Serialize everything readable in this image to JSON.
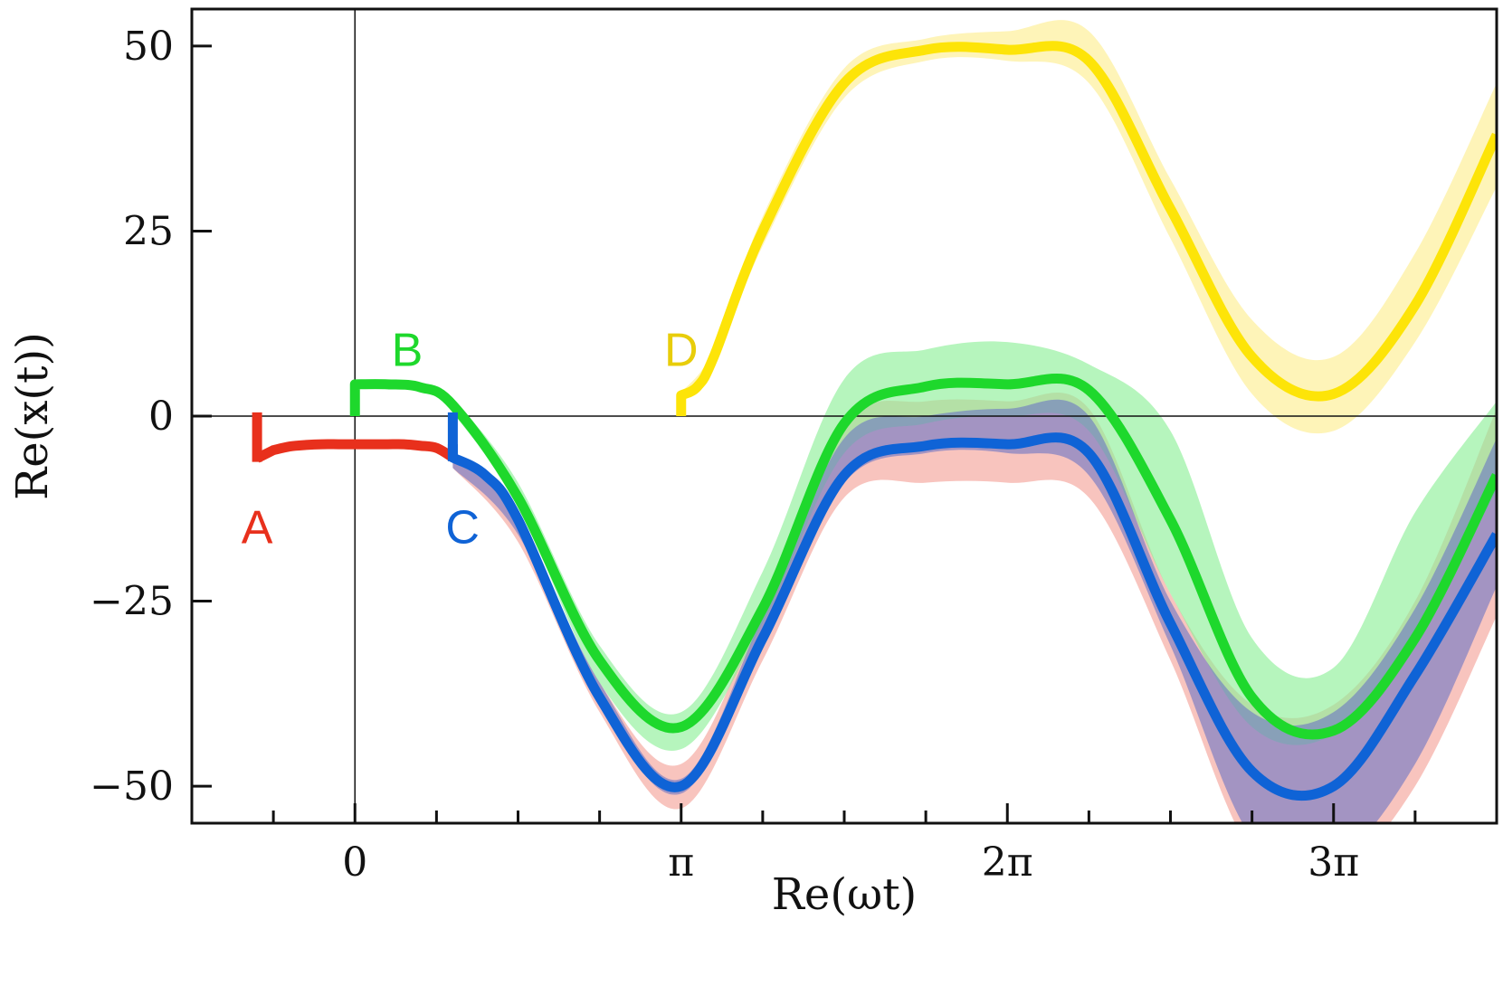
{
  "chart_data": {
    "type": "line",
    "title": "",
    "xlabel": "Re(ωt)",
    "ylabel": "Re(x(t))",
    "xlim": [
      -0.5,
      3.5
    ],
    "ylim": [
      -55,
      55
    ],
    "x_unit": "pi",
    "xticks": [
      {
        "value": 0,
        "label": "0"
      },
      {
        "value": 1,
        "label": "π"
      },
      {
        "value": 2,
        "label": "2π"
      },
      {
        "value": 3,
        "label": "3π"
      }
    ],
    "yticks": [
      {
        "value": 50,
        "label": "50"
      },
      {
        "value": 25,
        "label": "25"
      },
      {
        "value": 0,
        "label": "0"
      },
      {
        "value": -25,
        "label": "−25"
      },
      {
        "value": -50,
        "label": "−50"
      }
    ],
    "reference_lines": {
      "x": 0,
      "y": 0
    },
    "series": [
      {
        "name": "A",
        "color": "#e8301c",
        "band_color": "#f4a59b",
        "x": [
          -0.3,
          -0.25,
          -0.2,
          -0.15,
          -0.1,
          -0.05,
          0.0,
          0.05,
          0.1,
          0.15,
          0.2,
          0.25,
          0.3
        ],
        "y": [
          -5.7,
          -4.6,
          -4.1,
          -3.9,
          -3.8,
          -3.8,
          -3.8,
          -3.8,
          -3.8,
          -3.8,
          -4.0,
          -4.3,
          -5.6
        ],
        "band_x": [
          0.3,
          0.5,
          0.75,
          1.0,
          1.25,
          1.5,
          1.75,
          2.0,
          2.25,
          2.5,
          2.75,
          3.0,
          3.25,
          3.5
        ],
        "band_lo": [
          -7,
          -17,
          -40,
          -53,
          -33,
          -11,
          -9,
          -9,
          -11,
          -33,
          -59,
          -62,
          -50,
          -27
        ],
        "band_hi": [
          -5,
          -14,
          -36,
          -47,
          -26,
          -1,
          2,
          2,
          1,
          -24,
          -39,
          -39,
          -25,
          1
        ],
        "label_position": {
          "x": -0.3,
          "y": -15
        }
      },
      {
        "name": "B",
        "color": "#1ed82c",
        "band_color": "#8ff09a",
        "x": [
          0.0,
          0.0,
          0.1,
          0.2,
          0.3,
          0.5,
          0.75,
          1.0,
          1.25,
          1.5,
          1.75,
          2.0,
          2.25,
          2.5,
          2.75,
          3.0,
          3.25,
          3.5
        ],
        "y": [
          0,
          4.3,
          4.3,
          3.9,
          1.5,
          -11,
          -33,
          -42,
          -26,
          -1,
          4,
          4.3,
          3.5,
          -14,
          -38,
          -42.5,
          -30,
          -8
        ],
        "band_x": [
          0.3,
          0.5,
          0.75,
          1.0,
          1.25,
          1.5,
          1.75,
          2.0,
          2.25,
          2.5,
          2.75,
          3.0,
          3.25,
          3.5
        ],
        "band_lo": [
          0.5,
          -12,
          -36,
          -45,
          -28,
          -5,
          -1,
          0,
          -2,
          -24,
          -42,
          -43,
          -30,
          -10
        ],
        "band_hi": [
          2.5,
          -9,
          -31,
          -40,
          -21,
          5,
          9,
          10,
          7,
          -2,
          -30,
          -34,
          -13,
          2
        ],
        "label_position": {
          "x": 0.16,
          "y": 9
        }
      },
      {
        "name": "C",
        "color": "#0f63d6",
        "band_color": "#6a74c4",
        "x": [
          0.3,
          0.3,
          0.4,
          0.5,
          0.75,
          1.0,
          1.25,
          1.5,
          1.75,
          2.0,
          2.25,
          2.5,
          2.75,
          3.0,
          3.25,
          3.5
        ],
        "y": [
          -3.8,
          -5.6,
          -8,
          -14,
          -38,
          -50,
          -30,
          -8,
          -4,
          -3.8,
          -5,
          -28,
          -48,
          -50,
          -35,
          -16
        ],
        "band_x": [
          0.3,
          0.5,
          0.75,
          1.0,
          1.25,
          1.5,
          1.75,
          2.0,
          2.25,
          2.5,
          2.75,
          3.0,
          3.25,
          3.5
        ],
        "band_lo": [
          -7,
          -16,
          -39,
          -51,
          -31,
          -9,
          -5,
          -5,
          -8,
          -31,
          -57,
          -60,
          -47,
          -23
        ],
        "band_hi": [
          -5,
          -14,
          -36,
          -49,
          -27,
          -3,
          0,
          1,
          0,
          -25,
          -40,
          -40,
          -26,
          -3
        ],
        "label_position": {
          "x": 0.33,
          "y": -15
        }
      },
      {
        "name": "D",
        "color": "#fde408",
        "band_color": "#fdf0a0",
        "x": [
          1.0,
          1.0,
          1.05,
          1.1,
          1.25,
          1.5,
          1.75,
          2.0,
          2.25,
          2.5,
          2.75,
          3.0,
          3.25,
          3.5
        ],
        "y": [
          0,
          2.8,
          4,
          8,
          25,
          45,
          49.5,
          49.5,
          48,
          28,
          8,
          3,
          15,
          38
        ],
        "band_x": [
          1.0,
          1.1,
          1.25,
          1.5,
          1.75,
          2.0,
          2.25,
          2.5,
          2.75,
          3.0,
          3.25,
          3.5
        ],
        "band_lo": [
          2.5,
          7,
          23,
          43,
          48,
          48,
          45,
          24,
          3,
          -2,
          10,
          31
        ],
        "band_hi": [
          3.2,
          9,
          27,
          47,
          51,
          52,
          52,
          32,
          13,
          8,
          22,
          45
        ],
        "label_position": {
          "x": 1.0,
          "y": 9
        }
      }
    ]
  }
}
